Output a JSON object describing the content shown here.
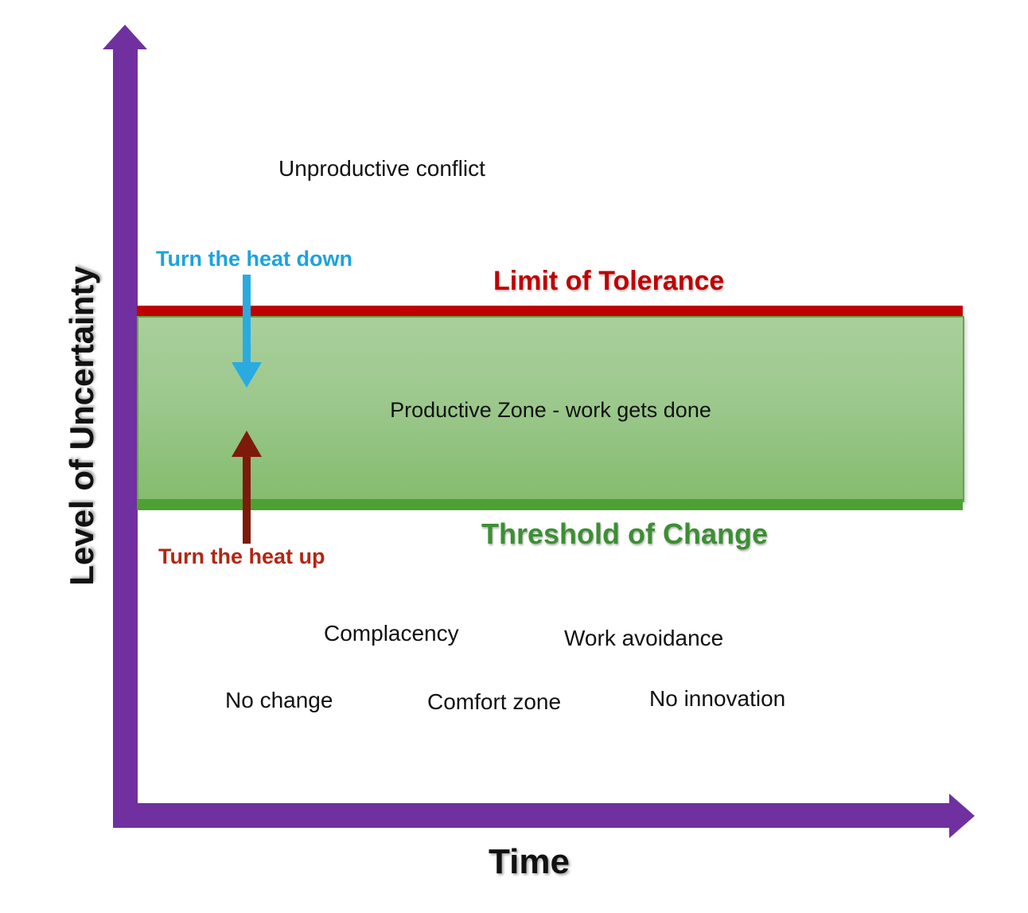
{
  "diagram": {
    "type": "productive-zone-of-disequilibrium",
    "axes": {
      "y_label": "Level of Uncertainty",
      "x_label": "Time",
      "axis_color": "#7030A0"
    },
    "zones": {
      "limit_line": {
        "label": "Limit of Tolerance",
        "label_color": "#C00000",
        "line_color": "#C00000"
      },
      "productive_zone": {
        "label": "Productive Zone - work gets done",
        "fill_top": "#A9CF9B",
        "fill_bottom": "#84BC6E",
        "border_color": "#5FA848"
      },
      "threshold_line": {
        "label": "Threshold of Change",
        "label_color": "#3C8F33",
        "line_color": "#4EA033"
      }
    },
    "actions": {
      "heat_down": {
        "label": "Turn the heat down",
        "color": "#29ABE2",
        "arrow_direction": "down"
      },
      "heat_up": {
        "label": "Turn the heat up",
        "text_color": "#B02713",
        "arrow_color": "#7E1A0C",
        "arrow_direction": "up"
      }
    },
    "region_labels": {
      "above_zone": "Unproductive conflict",
      "below_zone": {
        "complacency": "Complacency",
        "work_avoidance": "Work avoidance",
        "no_change": "No change",
        "comfort_zone": "Comfort zone",
        "no_innovation": "No innovation"
      }
    }
  }
}
